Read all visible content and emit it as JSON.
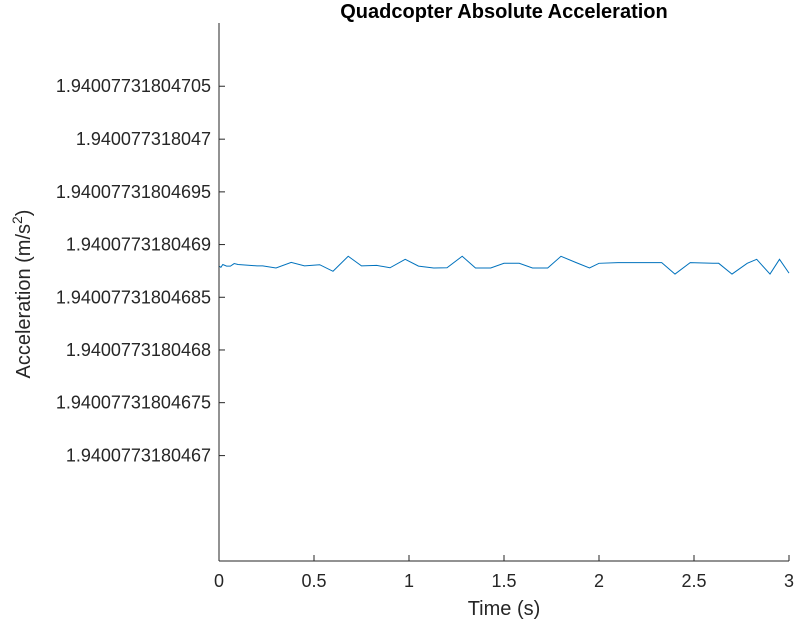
{
  "chart_data": {
    "type": "line",
    "title": "Quadcopter Absolute Acceleration",
    "xlabel": "Time (s)",
    "ylabel": "Acceleration (m/s",
    "ylabel_superscript": "2",
    "ylabel_close": ")",
    "xlim": [
      0,
      3
    ],
    "ylim": [
      1.9400773180466,
      1.94007731804711
    ],
    "x_ticks": [
      {
        "value": 0,
        "label": "0"
      },
      {
        "value": 0.5,
        "label": "0.5"
      },
      {
        "value": 1,
        "label": "1"
      },
      {
        "value": 1.5,
        "label": "1.5"
      },
      {
        "value": 2,
        "label": "2"
      },
      {
        "value": 2.5,
        "label": "2.5"
      },
      {
        "value": 3,
        "label": "3"
      }
    ],
    "y_ticks": [
      {
        "value": 1.9400773180467,
        "label": "1.9400773180467"
      },
      {
        "value": 1.94007731804675,
        "label": "1.94007731804675"
      },
      {
        "value": 1.9400773180468,
        "label": "1.9400773180468"
      },
      {
        "value": 1.94007731804685,
        "label": "1.94007731804685"
      },
      {
        "value": 1.9400773180469,
        "label": "1.9400773180469"
      },
      {
        "value": 1.94007731804695,
        "label": "1.94007731804695"
      },
      {
        "value": 1.940077318047,
        "label": "1.940077318047"
      },
      {
        "value": 1.94007731804705,
        "label": "1.94007731804705"
      }
    ],
    "grid": false,
    "series_color": "#0072BD",
    "series": [
      {
        "x": [
          0,
          0.01,
          0.02,
          0.04,
          0.06,
          0.08,
          0.1,
          0.2,
          0.23,
          0.3,
          0.38,
          0.45,
          0.53,
          0.6,
          0.68,
          0.75,
          0.83,
          0.9,
          0.98,
          1.05,
          1.13,
          1.2,
          1.28,
          1.35,
          1.43,
          1.5,
          1.58,
          1.65,
          1.73,
          1.8,
          1.88,
          1.95,
          2.0,
          2.1,
          2.2,
          2.33,
          2.4,
          2.48,
          2.6,
          2.63,
          2.7,
          2.78,
          2.83,
          2.9,
          2.95,
          3.0
        ],
        "y": [
          1.9400773180468796,
          1.9400773180468784,
          1.940077318046881,
          1.9400773180468796,
          1.9400773180468796,
          1.940077318046882,
          1.940077318046881,
          1.9400773180468798,
          1.9400773180468798,
          1.9400773180468778,
          1.940077318046883,
          1.9400773180468798,
          1.9400773180468809,
          1.9400773180468747,
          1.9400773180468889,
          1.9400773180468798,
          1.9400773180468802,
          1.940077318046878,
          1.940077318046886,
          1.9400773180468796,
          1.9400773180468778,
          1.940077318046878,
          1.9400773180468889,
          1.9400773180468778,
          1.9400773180468778,
          1.9400773180468822,
          1.9400773180468822,
          1.9400773180468778,
          1.9400773180468778,
          1.9400773180468889,
          1.9400773180468829,
          1.9400773180468778,
          1.9400773180468822,
          1.9400773180468829,
          1.9400773180468829,
          1.9400773180468829,
          1.940077318046872,
          1.9400773180468829,
          1.9400773180468822,
          1.9400773180468822,
          1.940077318046872,
          1.9400773180468822,
          1.940077318046886,
          1.940077318046872,
          1.940077318046886,
          1.940077318046873
        ]
      }
    ]
  }
}
